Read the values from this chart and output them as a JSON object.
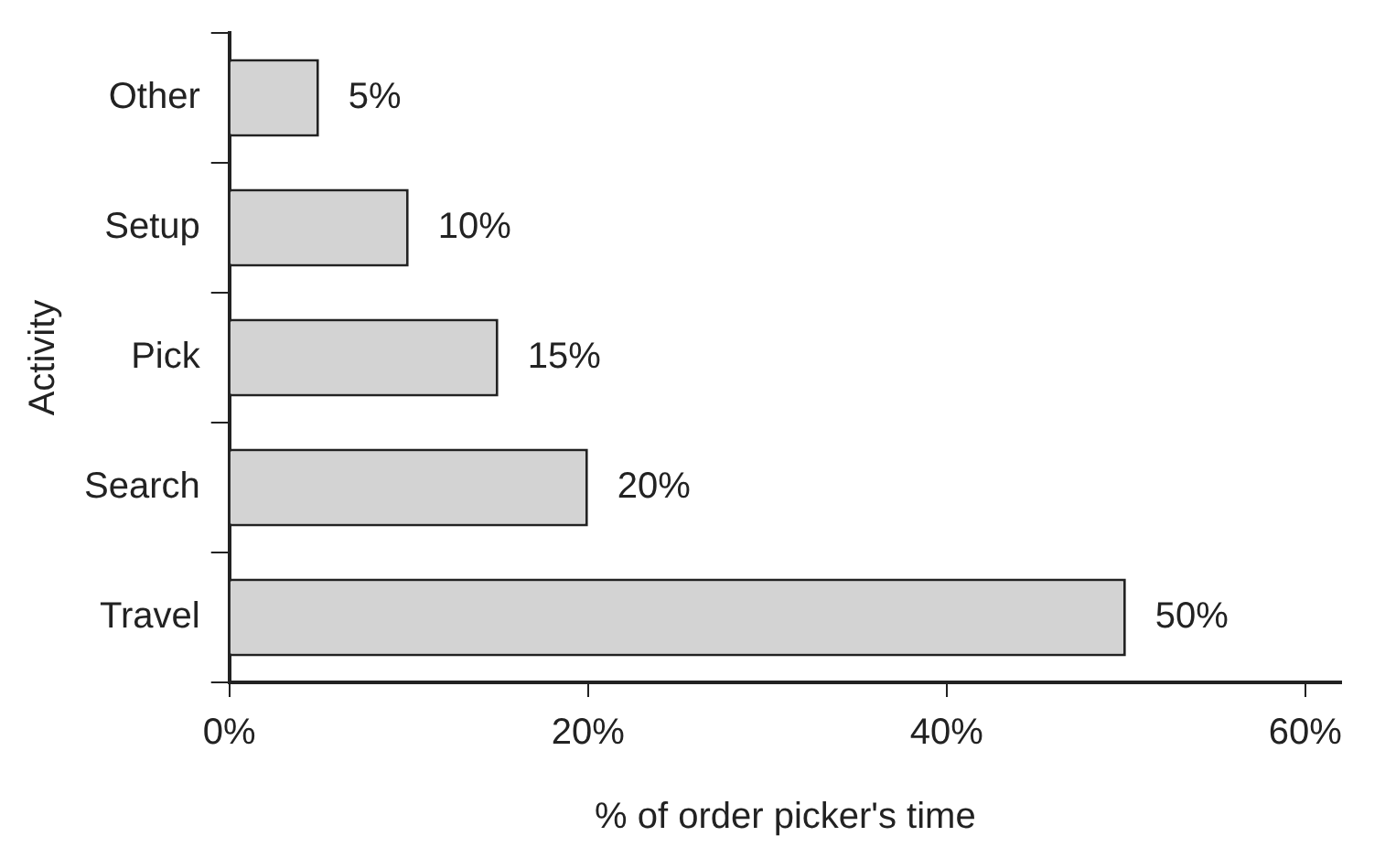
{
  "chart_data": {
    "type": "bar",
    "orientation": "horizontal",
    "xlabel": "% of order picker's time",
    "ylabel": "Activity",
    "categories": [
      "Other",
      "Setup",
      "Pick",
      "Search",
      "Travel"
    ],
    "values": [
      5,
      10,
      15,
      20,
      50
    ],
    "color": "#d3d3d3",
    "value_labels": [
      "5%",
      "10%",
      "15%",
      "20%",
      "50%"
    ],
    "xlim": [
      0,
      62
    ],
    "xticks": [
      {
        "value": 0,
        "label": "0%"
      },
      {
        "value": 20,
        "label": "20%"
      },
      {
        "value": 40,
        "label": "40%"
      },
      {
        "value": 60,
        "label": "60%"
      }
    ],
    "grid": false,
    "legend": false
  }
}
